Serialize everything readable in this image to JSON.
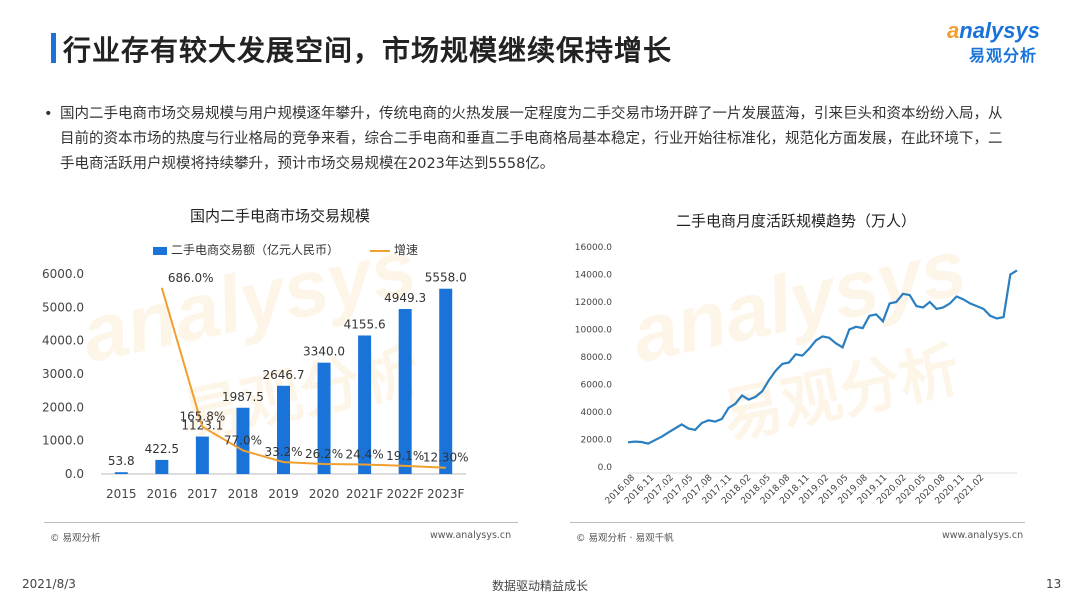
{
  "header": {
    "title": "行业存有较大发展空间，市场规模继续保持增长",
    "logo_en": "nalysys",
    "logo_en_prefix": "a",
    "logo_cn": "易观分析"
  },
  "bullet_text": "国内二手电商市场交易规模与用户规模逐年攀升，传统电商的火热发展一定程度为二手交易市场开辟了一片发展蓝海，引来巨头和资本纷纷入局，从目前的资本市场的热度与行业格局的竞争来看，综合二手电商和垂直二手电商格局基本稳定，行业开始往标准化，规范化方面发展，在此环境下，二手电商活跃用户规模将持续攀升，预计市场交易规模在2023年达到5558亿。",
  "bullet_symbol": "•",
  "watermark": {
    "en": "analysys",
    "cn": "易观分析"
  },
  "chart_data": [
    {
      "type": "bar",
      "title": "国内二手电商市场交易规模",
      "categories": [
        "2015",
        "2016",
        "2017",
        "2018",
        "2019",
        "2020",
        "2021F",
        "2022F",
        "2023F"
      ],
      "series": [
        {
          "name": "二手电商交易额（亿元人民币）",
          "type": "bar",
          "color": "#1a73d9",
          "values": [
            53.8,
            422.5,
            1123.1,
            1987.5,
            2646.7,
            3340.0,
            4155.6,
            4949.3,
            5558.0
          ],
          "labels": [
            "53.8",
            "422.5",
            "1123.1",
            "1987.5",
            "2646.7",
            "3340.0",
            "4155.6",
            "4949.3",
            "5558.0"
          ]
        },
        {
          "name": "增速",
          "type": "line",
          "color": "#f0a030",
          "values": [
            null,
            686.0,
            165.8,
            77.0,
            33.2,
            26.2,
            24.4,
            19.1,
            12.3
          ],
          "labels": [
            "",
            "686.0%",
            "165.8%",
            "77.0%",
            "33.2%",
            "26.2%",
            "24.4%",
            "19.1%",
            "12.30%"
          ]
        }
      ],
      "yticks": [
        "0.0",
        "1000.0",
        "2000.0",
        "3000.0",
        "4000.0",
        "5000.0",
        "6000.0"
      ],
      "ylim": [
        0,
        6000
      ],
      "source": "© 易观分析",
      "url": "www.analysys.cn"
    },
    {
      "type": "line",
      "title": "二手电商月度活跃规模趋势（万人）",
      "ylim": [
        0,
        16000
      ],
      "yticks": [
        "0.0",
        "2000.0",
        "4000.0",
        "6000.0",
        "8000.0",
        "10000.0",
        "12000.0",
        "14000.0",
        "16000.0"
      ],
      "xticks": [
        "2016.08",
        "2016.11",
        "2017.02",
        "2017.05",
        "2017.08",
        "2017.11",
        "2018.02",
        "2018.05",
        "2018.08",
        "2018.11",
        "2019.02",
        "2019.05",
        "2019.08",
        "2019.11",
        "2020.02",
        "2020.05",
        "2020.08",
        "2020.11",
        "2021.02"
      ],
      "series": [
        {
          "color": "#2a7fc1",
          "values": [
            1800,
            1850,
            1820,
            1700,
            1950,
            2200,
            2500,
            2800,
            3100,
            2800,
            2700,
            3200,
            3400,
            3300,
            3500,
            4300,
            4600,
            5200,
            4900,
            5100,
            5500,
            6300,
            7000,
            7500,
            7600,
            8200,
            8100,
            8600,
            9200,
            9500,
            9400,
            9000,
            8700,
            10000,
            10200,
            10100,
            11000,
            11100,
            10600,
            11900,
            12000,
            12600,
            12500,
            11700,
            11600,
            12000,
            11500,
            11600,
            11900,
            12400,
            12200,
            11900,
            11700,
            11500,
            11000,
            10800,
            10900,
            14000,
            14300
          ]
        }
      ],
      "source": "© 易观分析 · 易观千帆",
      "url": "www.analysys.cn"
    }
  ],
  "footer": {
    "date": "2021/8/3",
    "slogan": "数据驱动精益成长",
    "page": "13"
  }
}
